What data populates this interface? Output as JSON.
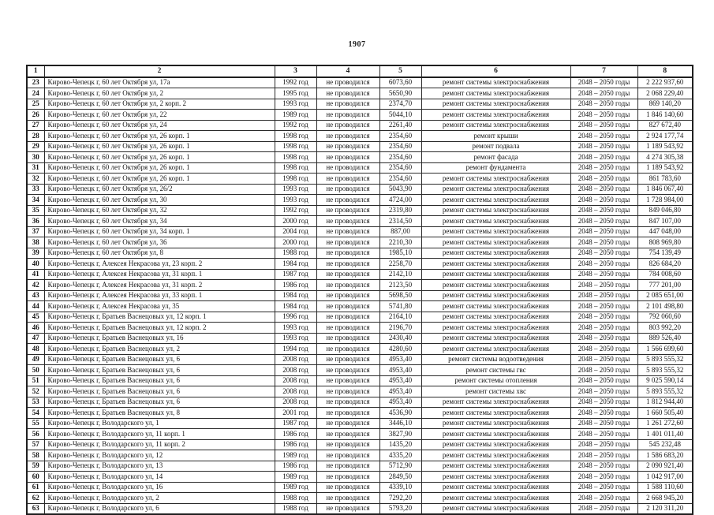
{
  "page": {
    "number": "1907"
  },
  "colors": {
    "background": "#ffffff",
    "text": "#151515",
    "border": "#2a2a2a"
  },
  "table": {
    "headers": [
      "1",
      "2",
      "3",
      "4",
      "5",
      "6",
      "7",
      "8"
    ],
    "rows": [
      [
        "23",
        "Кирово-Чепецк г, 60 лет Октября ул, 17а",
        "1992 год",
        "не проводился",
        "6073,60",
        "ремонт системы электроснабжения",
        "2048 – 2050 годы",
        "2 222 937,60"
      ],
      [
        "24",
        "Кирово-Чепецк г, 60 лет Октября ул, 2",
        "1995 год",
        "не проводился",
        "5650,90",
        "ремонт системы электроснабжения",
        "2048 – 2050 годы",
        "2 068 229,40"
      ],
      [
        "25",
        "Кирово-Чепецк г, 60 лет Октября ул, 2 корп. 2",
        "1993 год",
        "не проводился",
        "2374,70",
        "ремонт системы электроснабжения",
        "2048 – 2050 годы",
        "869 140,20"
      ],
      [
        "26",
        "Кирово-Чепецк г, 60 лет Октября ул, 22",
        "1989 год",
        "не проводился",
        "5044,10",
        "ремонт системы электроснабжения",
        "2048 – 2050 годы",
        "1 846 140,60"
      ],
      [
        "27",
        "Кирово-Чепецк г, 60 лет Октября ул, 24",
        "1992 год",
        "не проводился",
        "2261,40",
        "ремонт системы электроснабжения",
        "2048 – 2050 годы",
        "827 672,40"
      ],
      [
        "28",
        "Кирово-Чепецк г, 60 лет Октября ул, 26 корп. 1",
        "1998 год",
        "не проводился",
        "2354,60",
        "ремонт крыши",
        "2048 – 2050 годы",
        "2 924 177,74"
      ],
      [
        "29",
        "Кирово-Чепецк г, 60 лет Октября ул, 26 корп. 1",
        "1998 год",
        "не проводился",
        "2354,60",
        "ремонт подвала",
        "2048 – 2050 годы",
        "1 189 543,92"
      ],
      [
        "30",
        "Кирово-Чепецк г, 60 лет Октября ул, 26 корп. 1",
        "1998 год",
        "не проводился",
        "2354,60",
        "ремонт фасада",
        "2048 – 2050 годы",
        "4 274 305,38"
      ],
      [
        "31",
        "Кирово-Чепецк г, 60 лет Октября ул, 26 корп. 1",
        "1998 год",
        "не проводился",
        "2354,60",
        "ремонт фундамента",
        "2048 – 2050 годы",
        "1 189 543,92"
      ],
      [
        "32",
        "Кирово-Чепецк г, 60 лет Октября ул, 26 корп. 1",
        "1998 год",
        "не проводился",
        "2354,60",
        "ремонт системы электроснабжения",
        "2048 – 2050 годы",
        "861 783,60"
      ],
      [
        "33",
        "Кирово-Чепецк г, 60 лет Октября ул, 26/2",
        "1993 год",
        "не проводился",
        "5043,90",
        "ремонт системы электроснабжения",
        "2048 – 2050 годы",
        "1 846 067,40"
      ],
      [
        "34",
        "Кирово-Чепецк г, 60 лет Октября ул, 30",
        "1993 год",
        "не проводился",
        "4724,00",
        "ремонт системы электроснабжения",
        "2048 – 2050 годы",
        "1 728 984,00"
      ],
      [
        "35",
        "Кирово-Чепецк г, 60 лет Октября ул, 32",
        "1992 год",
        "не проводился",
        "2319,80",
        "ремонт системы электроснабжения",
        "2048 – 2050 годы",
        "849 046,80"
      ],
      [
        "36",
        "Кирово-Чепецк г, 60 лет Октября ул, 34",
        "2000 год",
        "не проводился",
        "2314,50",
        "ремонт системы электроснабжения",
        "2048 – 2050 годы",
        "847 107,00"
      ],
      [
        "37",
        "Кирово-Чепецк г, 60 лет Октября ул, 34 корп. 1",
        "2004 год",
        "не проводился",
        "887,00",
        "ремонт системы электроснабжения",
        "2048 – 2050 годы",
        "447 048,00"
      ],
      [
        "38",
        "Кирово-Чепецк г, 60 лет Октября ул, 36",
        "2000 год",
        "не проводился",
        "2210,30",
        "ремонт системы электроснабжения",
        "2048 – 2050 годы",
        "808 969,80"
      ],
      [
        "39",
        "Кирово-Чепецк г, 60 лет Октября ул, 8",
        "1988 год",
        "не проводился",
        "1985,10",
        "ремонт системы электроснабжения",
        "2048 – 2050 годы",
        "754 139,49"
      ],
      [
        "40",
        "Кирово-Чепецк г, Алексея Некрасова ул, 23 корп. 2",
        "1984 год",
        "не проводился",
        "2258,70",
        "ремонт системы электроснабжения",
        "2048 – 2050 годы",
        "826 684,20"
      ],
      [
        "41",
        "Кирово-Чепецк г, Алексея Некрасова ул, 31 корп. 1",
        "1987 год",
        "не проводился",
        "2142,10",
        "ремонт системы электроснабжения",
        "2048 – 2050 годы",
        "784 008,60"
      ],
      [
        "42",
        "Кирово-Чепецк г, Алексея Некрасова ул, 31 корп. 2",
        "1986 год",
        "не проводился",
        "2123,50",
        "ремонт системы электроснабжения",
        "2048 – 2050 годы",
        "777 201,00"
      ],
      [
        "43",
        "Кирово-Чепецк г, Алексея Некрасова ул, 33 корп. 1",
        "1984 год",
        "не проводился",
        "5698,50",
        "ремонт системы электроснабжения",
        "2048 – 2050 годы",
        "2 085 651,00"
      ],
      [
        "44",
        "Кирово-Чепецк г, Алексея Некрасова ул, 35",
        "1984 год",
        "не проводился",
        "5741,80",
        "ремонт системы электроснабжения",
        "2048 – 2050 годы",
        "2 101 498,80"
      ],
      [
        "45",
        "Кирово-Чепецк г, Братьев Васнецовых ул, 12 корп. 1",
        "1996 год",
        "не проводился",
        "2164,10",
        "ремонт системы электроснабжения",
        "2048 – 2050 годы",
        "792 060,60"
      ],
      [
        "46",
        "Кирово-Чепецк г, Братьев Васнецовых ул, 12 корп. 2",
        "1993 год",
        "не проводился",
        "2196,70",
        "ремонт системы электроснабжения",
        "2048 – 2050 годы",
        "803 992,20"
      ],
      [
        "47",
        "Кирово-Чепецк г, Братьев Васнецовых ул, 16",
        "1993 год",
        "не проводился",
        "2430,40",
        "ремонт системы электроснабжения",
        "2048 – 2050 годы",
        "889 526,40"
      ],
      [
        "48",
        "Кирово-Чепецк г, Братьев Васнецовых ул, 2",
        "1994 год",
        "не проводился",
        "4280,60",
        "ремонт системы электроснабжения",
        "2048 – 2050 годы",
        "1 566 699,60"
      ],
      [
        "49",
        "Кирово-Чепецк г, Братьев Васнецовых ул, 6",
        "2008 год",
        "не проводился",
        "4953,40",
        "ремонт системы водоотведения",
        "2048 – 2050 годы",
        "5 893 555,32"
      ],
      [
        "50",
        "Кирово-Чепецк г, Братьев Васнецовых ул, 6",
        "2008 год",
        "не проводился",
        "4953,40",
        "ремонт системы гвс",
        "2048 – 2050 годы",
        "5 893 555,32"
      ],
      [
        "51",
        "Кирово-Чепецк г, Братьев Васнецовых ул, 6",
        "2008 год",
        "не проводился",
        "4953,40",
        "ремонт системы отопления",
        "2048 – 2050 годы",
        "9 025 590,14"
      ],
      [
        "52",
        "Кирово-Чепецк г, Братьев Васнецовых ул, 6",
        "2008 год",
        "не проводился",
        "4953,40",
        "ремонт системы хвс",
        "2048 – 2050 годы",
        "5 893 555,32"
      ],
      [
        "53",
        "Кирово-Чепецк г, Братьев Васнецовых ул, 6",
        "2008 год",
        "не проводился",
        "4953,40",
        "ремонт системы электроснабжения",
        "2048 – 2050 годы",
        "1 812 944,40"
      ],
      [
        "54",
        "Кирово-Чепецк г, Братьев Васнецовых ул, 8",
        "2001 год",
        "не проводился",
        "4536,90",
        "ремонт системы электроснабжения",
        "2048 – 2050 годы",
        "1 660 505,40"
      ],
      [
        "55",
        "Кирово-Чепецк г, Володарского ул, 1",
        "1987 год",
        "не проводился",
        "3446,10",
        "ремонт системы электроснабжения",
        "2048 – 2050 годы",
        "1 261 272,60"
      ],
      [
        "56",
        "Кирово-Чепецк г, Володарского ул, 11 корп. 1",
        "1986 год",
        "не проводился",
        "3827,90",
        "ремонт системы электроснабжения",
        "2048 – 2050 годы",
        "1 401 011,40"
      ],
      [
        "57",
        "Кирово-Чепецк г, Володарского ул, 11 корп. 2",
        "1986 год",
        "не проводился",
        "1435,20",
        "ремонт системы электроснабжения",
        "2048 – 2050 годы",
        "545 232,48"
      ],
      [
        "58",
        "Кирово-Чепецк г, Володарского ул, 12",
        "1989 год",
        "не проводился",
        "4335,20",
        "ремонт системы электроснабжения",
        "2048 – 2050 годы",
        "1 586 683,20"
      ],
      [
        "59",
        "Кирово-Чепецк г, Володарского ул, 13",
        "1986 год",
        "не проводился",
        "5712,90",
        "ремонт системы электроснабжения",
        "2048 – 2050 годы",
        "2 090 921,40"
      ],
      [
        "60",
        "Кирово-Чепецк г, Володарского ул, 14",
        "1989 год",
        "не проводился",
        "2849,50",
        "ремонт системы электроснабжения",
        "2048 – 2050 годы",
        "1 042 917,00"
      ],
      [
        "61",
        "Кирово-Чепецк г, Володарского ул, 16",
        "1989 год",
        "не проводился",
        "4339,10",
        "ремонт системы электроснабжения",
        "2048 – 2050 годы",
        "1 588 110,60"
      ],
      [
        "62",
        "Кирово-Чепецк г, Володарского ул, 2",
        "1988 год",
        "не проводился",
        "7292,20",
        "ремонт системы электроснабжения",
        "2048 – 2050 годы",
        "2 668 945,20"
      ],
      [
        "63",
        "Кирово-Чепецк г, Володарского ул, 6",
        "1988 год",
        "не проводился",
        "5793,20",
        "ремонт системы электроснабжения",
        "2048 – 2050 годы",
        "2 120 311,20"
      ]
    ]
  }
}
